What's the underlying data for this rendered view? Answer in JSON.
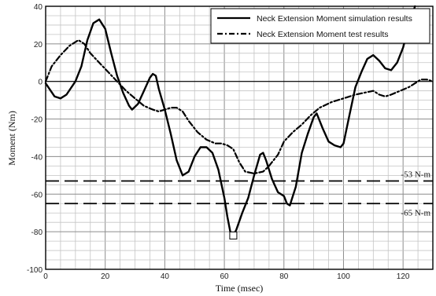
{
  "chart_data": {
    "type": "line",
    "xlabel": "Time (msec)",
    "ylabel": "Moment (Nm)",
    "xlim": [
      0,
      130
    ],
    "ylim": [
      -100,
      40
    ],
    "x_ticks": [
      0,
      20,
      40,
      60,
      80,
      100,
      120
    ],
    "y_ticks": [
      40,
      20,
      0,
      -20,
      -40,
      -60,
      -80,
      -100
    ],
    "grid": true,
    "legend_position": "top-right",
    "series": [
      {
        "name": "Neck Extension Moment simulation results",
        "style": "solid",
        "color": "#000000",
        "points": [
          [
            0,
            -1
          ],
          [
            3,
            -8
          ],
          [
            5,
            -9
          ],
          [
            7,
            -7
          ],
          [
            10,
            0
          ],
          [
            12,
            8
          ],
          [
            14,
            22
          ],
          [
            16,
            31
          ],
          [
            18,
            33
          ],
          [
            20,
            28
          ],
          [
            22,
            15
          ],
          [
            24,
            3
          ],
          [
            26,
            -6
          ],
          [
            28,
            -13
          ],
          [
            29,
            -15
          ],
          [
            31,
            -12
          ],
          [
            33,
            -5
          ],
          [
            35,
            2
          ],
          [
            36,
            4
          ],
          [
            37,
            3
          ],
          [
            38,
            -4
          ],
          [
            40,
            -15
          ],
          [
            42,
            -28
          ],
          [
            44,
            -42
          ],
          [
            46,
            -50
          ],
          [
            48,
            -48
          ],
          [
            50,
            -40
          ],
          [
            52,
            -35
          ],
          [
            54,
            -35
          ],
          [
            56,
            -38
          ],
          [
            58,
            -47
          ],
          [
            60,
            -62
          ],
          [
            61,
            -72
          ],
          [
            62,
            -80
          ],
          [
            63,
            -82
          ],
          [
            64,
            -79
          ],
          [
            66,
            -70
          ],
          [
            68,
            -62
          ],
          [
            70,
            -50
          ],
          [
            72,
            -39
          ],
          [
            73,
            -38
          ],
          [
            74,
            -42
          ],
          [
            76,
            -52
          ],
          [
            78,
            -59
          ],
          [
            80,
            -61
          ],
          [
            81,
            -65
          ],
          [
            82,
            -66
          ],
          [
            84,
            -56
          ],
          [
            86,
            -38
          ],
          [
            88,
            -28
          ],
          [
            90,
            -19
          ],
          [
            91,
            -17
          ],
          [
            93,
            -25
          ],
          [
            95,
            -32
          ],
          [
            97,
            -34
          ],
          [
            99,
            -35
          ],
          [
            100,
            -33
          ],
          [
            102,
            -18
          ],
          [
            104,
            -3
          ],
          [
            106,
            5
          ],
          [
            108,
            12
          ],
          [
            110,
            14
          ],
          [
            112,
            11
          ],
          [
            114,
            7
          ],
          [
            116,
            6
          ],
          [
            118,
            10
          ],
          [
            120,
            18
          ],
          [
            122,
            30
          ],
          [
            124,
            40
          ]
        ]
      },
      {
        "name": "Neck Extension Moment test results",
        "style": "dash-dot",
        "color": "#000000",
        "points": [
          [
            0,
            0
          ],
          [
            2,
            8
          ],
          [
            5,
            14
          ],
          [
            8,
            19
          ],
          [
            11,
            22
          ],
          [
            13,
            20
          ],
          [
            15,
            15
          ],
          [
            18,
            10
          ],
          [
            21,
            5
          ],
          [
            24,
            0
          ],
          [
            27,
            -5
          ],
          [
            30,
            -9
          ],
          [
            33,
            -13
          ],
          [
            36,
            -15
          ],
          [
            38,
            -16
          ],
          [
            40,
            -15
          ],
          [
            42,
            -14
          ],
          [
            44,
            -14
          ],
          [
            46,
            -16
          ],
          [
            48,
            -21
          ],
          [
            51,
            -27
          ],
          [
            54,
            -31
          ],
          [
            57,
            -33
          ],
          [
            59,
            -33
          ],
          [
            61,
            -34
          ],
          [
            63,
            -36
          ],
          [
            65,
            -43
          ],
          [
            67,
            -48
          ],
          [
            70,
            -49
          ],
          [
            73,
            -48
          ],
          [
            75,
            -45
          ],
          [
            78,
            -39
          ],
          [
            80,
            -32
          ],
          [
            83,
            -27
          ],
          [
            86,
            -23
          ],
          [
            89,
            -18
          ],
          [
            92,
            -14
          ],
          [
            96,
            -11
          ],
          [
            100,
            -9
          ],
          [
            104,
            -7
          ],
          [
            107,
            -6
          ],
          [
            110,
            -5
          ],
          [
            112,
            -7
          ],
          [
            114,
            -8
          ],
          [
            116,
            -7
          ],
          [
            119,
            -5
          ],
          [
            122,
            -3
          ],
          [
            124,
            -1
          ],
          [
            126,
            1
          ],
          [
            128,
            1
          ],
          [
            130,
            0
          ]
        ]
      }
    ],
    "reference_lines": [
      {
        "y": -53,
        "label": "-53 N-m",
        "style": "long-dash"
      },
      {
        "y": -65,
        "label": "-65 N-m",
        "style": "long-dash"
      }
    ],
    "marker": {
      "x": 63,
      "y": -82,
      "shape": "square"
    }
  }
}
